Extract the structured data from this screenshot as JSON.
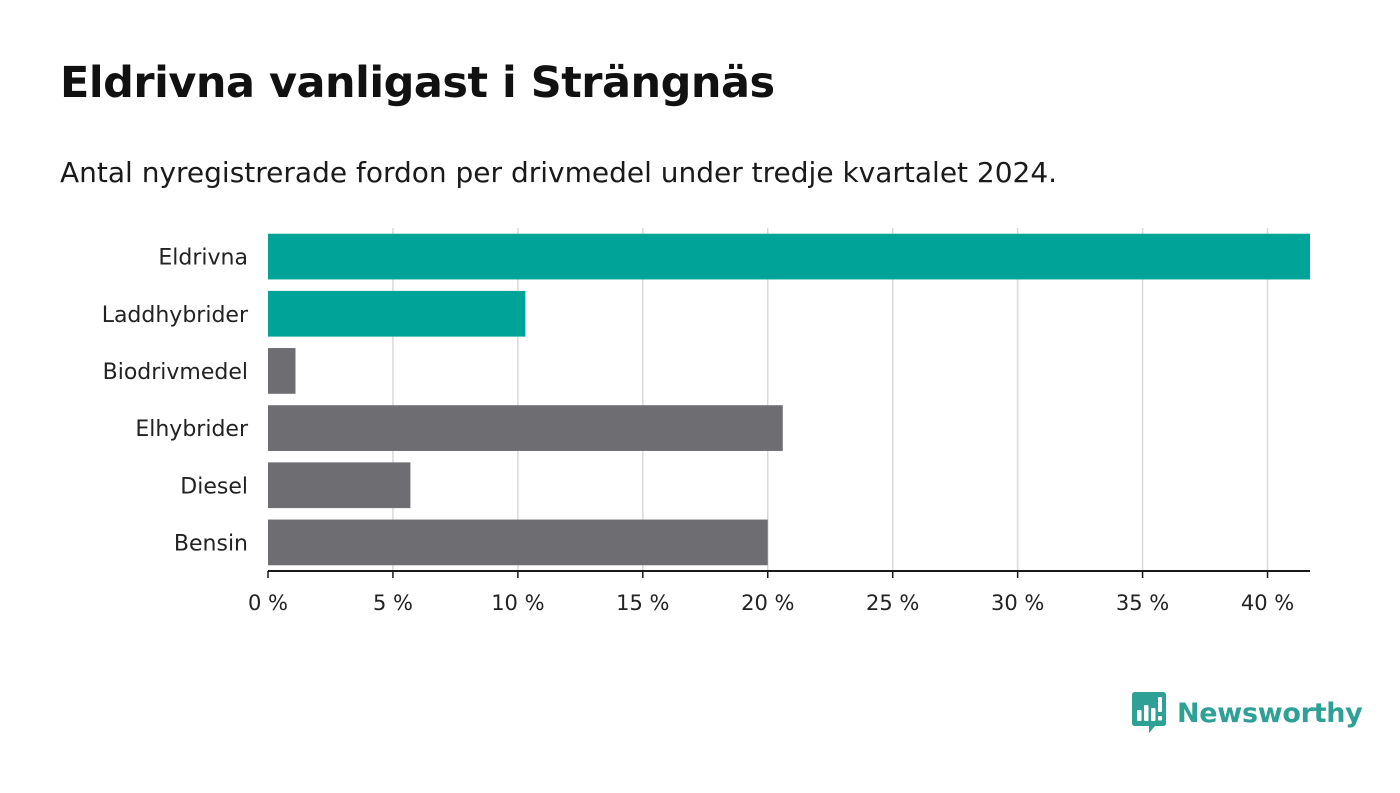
{
  "chart_data": {
    "type": "bar",
    "orientation": "horizontal",
    "title": "Eldrivna vanligast i Strängnäs",
    "subtitle": "Antal nyregistrerade fordon per drivmedel under tredje kvartalet 2024.",
    "categories": [
      "Eldrivna",
      "Laddhybrider",
      "Biodrivmedel",
      "Elhybrider",
      "Diesel",
      "Bensin"
    ],
    "values": [
      41.7,
      10.3,
      1.1,
      20.6,
      5.7,
      20.0
    ],
    "bar_colors": [
      "#00a398",
      "#00a398",
      "#6e6d72",
      "#6e6d72",
      "#6e6d72",
      "#6e6d72"
    ],
    "xlim": [
      0,
      41.7
    ],
    "xticks": [
      0,
      5,
      10,
      15,
      20,
      25,
      30,
      35,
      40
    ],
    "xtick_labels": [
      "0 %",
      "5 %",
      "10 %",
      "15 %",
      "20 %",
      "25 %",
      "30 %",
      "35 %",
      "40 %"
    ],
    "xlabel": "",
    "ylabel": "",
    "grid": true,
    "legend": false
  },
  "branding": {
    "name": "Newsworthy",
    "color": "#2ea095"
  }
}
